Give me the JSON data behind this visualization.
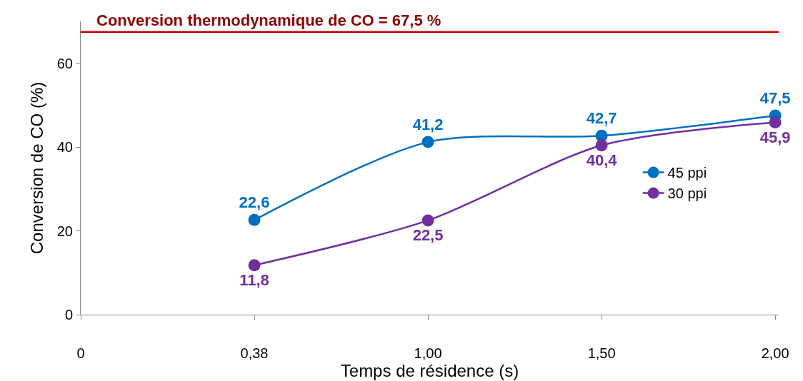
{
  "chart_data": {
    "type": "line",
    "xlabel": "Temps de résidence (s)",
    "ylabel": "Conversion de CO (%)",
    "categories": [
      "0",
      "0,38",
      "1,00",
      "1,50",
      "2,00"
    ],
    "series": [
      {
        "name": "45 ppi",
        "color": "#0070c0",
        "values": [
          null,
          22.6,
          41.2,
          42.7,
          47.5
        ],
        "value_labels": [
          null,
          "22,6",
          "41,2",
          "42,7",
          "47,5"
        ]
      },
      {
        "name": "30 ppi",
        "color": "#7030a0",
        "values": [
          null,
          11.8,
          22.5,
          40.4,
          45.9
        ],
        "value_labels": [
          null,
          "11,8",
          "22,5",
          "40,4",
          "45,9"
        ]
      }
    ],
    "ylim": [
      0,
      70
    ],
    "yticks": [
      0,
      20,
      40,
      60
    ],
    "ref_lines": [
      {
        "axis": "y",
        "value": 67.5,
        "label": "Conversion thermodynamique de CO = 67,5 %",
        "color": "#c00000"
      }
    ],
    "grid": false,
    "legend": "right",
    "marker": "circle",
    "line_style": "solid"
  }
}
